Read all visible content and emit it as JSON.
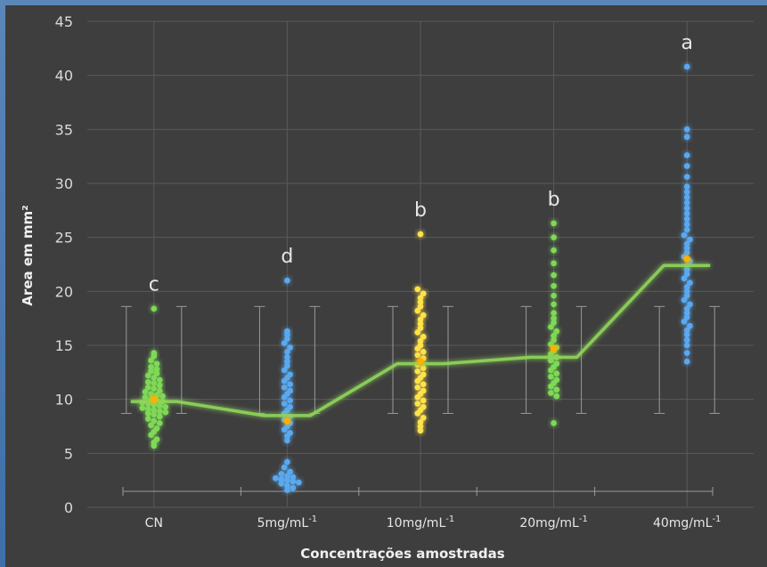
{
  "chart_data": {
    "type": "scatter",
    "subtype": "beeswarm-with-mean-line",
    "xlabel": "Concentrações amostradas",
    "ylabel": "Area em mm²",
    "ylim": [
      0,
      45
    ],
    "yticks": [
      0,
      5,
      10,
      15,
      20,
      25,
      30,
      35,
      40,
      45
    ],
    "grid": true,
    "categories": [
      {
        "label": "CN",
        "sup": ""
      },
      {
        "label": "5mg/mL",
        "sup": "-1"
      },
      {
        "label": "10mg/mL",
        "sup": "-1"
      },
      {
        "label": "20mg/mL",
        "sup": "-1"
      },
      {
        "label": "40mg/mL",
        "sup": "-1"
      }
    ],
    "significance_letters": [
      "c",
      "d",
      "b",
      "b",
      "a"
    ],
    "mean_line": [
      9.8,
      8.5,
      13.3,
      13.9,
      22.4
    ],
    "mean_points": [
      10.0,
      8.0,
      13.5,
      14.7,
      23.0
    ],
    "error_bar": {
      "low": 8.7,
      "high": 18.6
    },
    "colors": {
      "background": "#3e3e3e",
      "grid": "#5a5a5a",
      "green": "#7ed957",
      "blue": "#5aa9f0",
      "yellow": "#ffe24a",
      "mean_line": "#8ed45a",
      "mean_point": "#ffb000",
      "errorbar": "#9a9a9a"
    },
    "series": [
      {
        "category": "CN",
        "color": "green",
        "values": [
          18.4,
          14.3,
          14.0,
          13.6,
          13.3,
          13.0,
          12.8,
          12.6,
          12.4,
          12.2,
          12.0,
          11.8,
          11.6,
          11.5,
          11.3,
          11.1,
          11.0,
          10.8,
          10.7,
          10.5,
          10.4,
          10.3,
          10.2,
          10.0,
          9.9,
          9.8,
          9.7,
          9.6,
          9.5,
          9.4,
          9.3,
          9.2,
          9.1,
          9.0,
          8.9,
          8.8,
          8.7,
          8.6,
          8.4,
          8.2,
          8.0,
          7.8,
          7.6,
          7.3,
          7.0,
          6.7,
          6.3,
          6.0,
          5.7
        ]
      },
      {
        "category": "5mg/mL-1",
        "color": "blue",
        "values": [
          21.0,
          16.3,
          16.0,
          15.6,
          15.2,
          14.8,
          14.4,
          13.9,
          13.5,
          13.1,
          12.7,
          12.3,
          12.0,
          11.7,
          11.4,
          11.1,
          10.8,
          10.5,
          10.2,
          9.9,
          9.6,
          9.3,
          9.0,
          8.7,
          8.4,
          8.1,
          7.8,
          7.5,
          7.2,
          6.9,
          6.6,
          6.2,
          4.2,
          3.7,
          3.3,
          3.1,
          2.9,
          2.8,
          2.7,
          2.6,
          2.5,
          2.4,
          2.3,
          2.2,
          2.0,
          1.8,
          1.6
        ]
      },
      {
        "category": "10mg/mL-1",
        "color": "yellow",
        "values": [
          25.3,
          20.2,
          19.8,
          19.4,
          19.0,
          18.6,
          18.2,
          17.8,
          17.4,
          17.0,
          16.6,
          16.2,
          15.8,
          15.4,
          15.0,
          14.7,
          14.4,
          14.1,
          13.8,
          13.5,
          13.2,
          12.9,
          12.6,
          12.3,
          12.0,
          11.7,
          11.4,
          11.1,
          10.8,
          10.5,
          10.2,
          9.9,
          9.6,
          9.3,
          9.0,
          8.7,
          8.3,
          7.9,
          7.5,
          7.1
        ]
      },
      {
        "category": "20mg/mL-1",
        "color": "green",
        "values": [
          26.3,
          25.0,
          23.8,
          22.6,
          21.5,
          20.5,
          19.6,
          18.8,
          18.0,
          17.5,
          17.1,
          16.7,
          16.3,
          15.9,
          15.5,
          15.1,
          14.8,
          14.5,
          14.2,
          13.9,
          13.6,
          13.3,
          13.0,
          12.7,
          12.4,
          12.1,
          11.8,
          11.5,
          11.2,
          10.9,
          10.6,
          10.3,
          7.8
        ]
      },
      {
        "category": "40mg/mL-1",
        "color": "blue",
        "values": [
          40.8,
          35.0,
          34.3,
          32.6,
          31.6,
          30.6,
          29.7,
          29.2,
          28.7,
          28.2,
          27.7,
          27.2,
          26.7,
          26.2,
          25.7,
          25.2,
          24.8,
          24.4,
          24.0,
          23.6,
          23.2,
          22.8,
          22.4,
          22.0,
          21.6,
          21.2,
          20.8,
          20.4,
          20.0,
          19.6,
          19.2,
          18.8,
          18.4,
          18.0,
          17.6,
          17.2,
          16.8,
          16.4,
          16.0,
          15.5,
          15.0,
          14.3,
          13.5
        ]
      }
    ]
  }
}
